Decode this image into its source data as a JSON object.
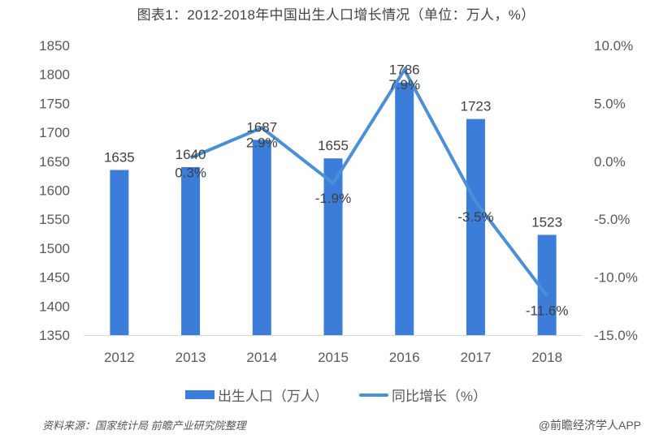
{
  "title": "图表1：2012-2018年中国出生人口增长情况（单位：万人，%）",
  "legend": {
    "bar_label": "出生人口（万人）",
    "line_label": "同比增长（%）"
  },
  "footer": {
    "source": "资料来源：国家统计局 前瞻产业研究院整理",
    "credit": "@前瞻经济学人APP"
  },
  "colors": {
    "bar": "#3b7dd8",
    "line": "#4a90d9",
    "axis_text": "#595959",
    "label_text": "#404040"
  },
  "chart_data": {
    "type": "bar+line",
    "title": "图表1：2012-2018年中国出生人口增长情况（单位：万人，%）",
    "categories": [
      "2012",
      "2013",
      "2014",
      "2015",
      "2016",
      "2017",
      "2018"
    ],
    "series": [
      {
        "name": "出生人口（万人）",
        "type": "bar",
        "axis": "left",
        "values": [
          1635,
          1640,
          1687,
          1655,
          1786,
          1723,
          1523
        ],
        "labels": [
          "1635",
          "1640",
          "1687",
          "1655",
          "1786",
          "1723",
          "1523"
        ]
      },
      {
        "name": "同比增长（%）",
        "type": "line",
        "axis": "right",
        "values": [
          null,
          0.3,
          2.9,
          -1.9,
          7.9,
          -3.5,
          -11.6
        ],
        "labels": [
          "",
          "0.3%",
          "2.9%",
          "-1.9%",
          "7.9%",
          "-3.5%",
          "-11.6%"
        ]
      }
    ],
    "left_axis": {
      "ylim": [
        1350,
        1850
      ],
      "ticks": [
        "1850",
        "1800",
        "1750",
        "1700",
        "1650",
        "1600",
        "1550",
        "1500",
        "1450",
        "1400",
        "1350"
      ]
    },
    "right_axis": {
      "ylim": [
        -15.0,
        10.0
      ],
      "ticks": [
        "10.0%",
        "5.0%",
        "0.0%",
        "-5.0%",
        "-10.0%",
        "-15.0%"
      ]
    },
    "grid": false,
    "legend_position": "bottom"
  }
}
